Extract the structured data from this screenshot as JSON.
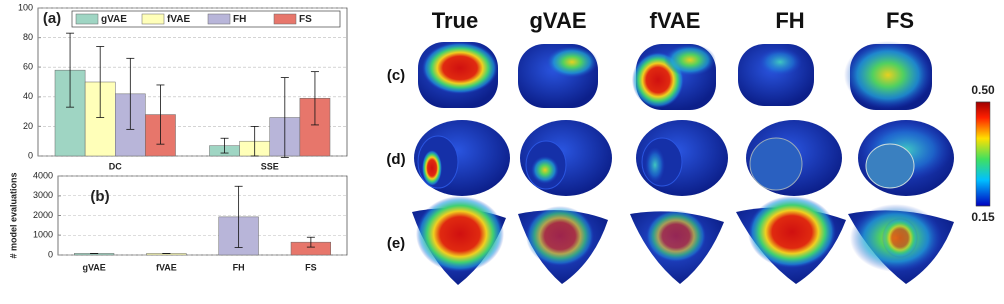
{
  "chart_data": [
    {
      "type": "bar",
      "panel": "(a)",
      "categories": [
        "DC",
        "SSE"
      ],
      "series": [
        {
          "name": "gVAE",
          "color": "#9fd5c3",
          "values": [
            58,
            7
          ],
          "error": [
            25,
            5
          ]
        },
        {
          "name": "fVAE",
          "color": "#ffffb9",
          "values": [
            50,
            10
          ],
          "error": [
            24,
            10
          ]
        },
        {
          "name": "FH",
          "color": "#b8b5d9",
          "values": [
            42,
            26
          ],
          "error": [
            24,
            27
          ]
        },
        {
          "name": "FS",
          "color": "#e7766b",
          "values": [
            28,
            39
          ],
          "error": [
            20,
            18
          ]
        }
      ],
      "ylim": [
        0,
        100
      ],
      "yticks": [
        0,
        20,
        40,
        60,
        80,
        100
      ],
      "grid": true,
      "legend": "top"
    },
    {
      "type": "bar",
      "panel": "(b)",
      "ylabel": "# model evaluations",
      "categories": [
        "gVAE",
        "fVAE",
        "FH",
        "FS"
      ],
      "values": [
        80,
        80,
        1930,
        650
      ],
      "error": [
        0,
        0,
        1550,
        250
      ],
      "colors": [
        "#9fd5c3",
        "#ffffb9",
        "#b8b5d9",
        "#e7766b"
      ],
      "ylim": [
        0,
        4000
      ],
      "yticks": [
        0,
        1000,
        2000,
        3000,
        4000
      ],
      "grid": true
    }
  ],
  "maps": {
    "columns": [
      "True",
      "gVAE",
      "fVAE",
      "FH",
      "FS"
    ],
    "rows": [
      "(c)",
      "(d)",
      "(e)"
    ],
    "colorbar": {
      "clim": [
        0.15,
        0.5
      ],
      "ticks": [
        {
          "value": 0.5,
          "label": "0.50"
        },
        {
          "value": 0.15,
          "label": "0.15"
        }
      ]
    }
  }
}
